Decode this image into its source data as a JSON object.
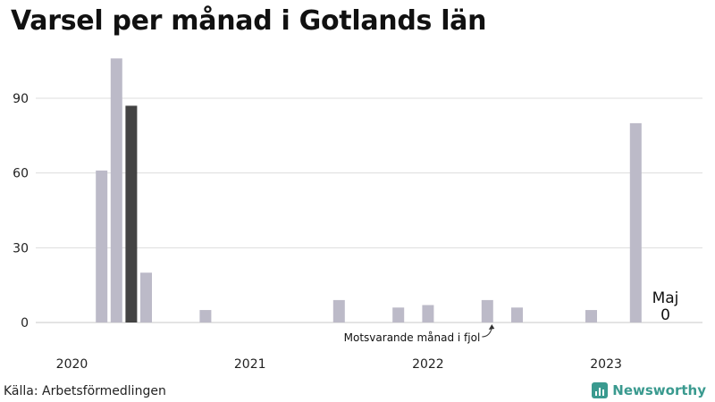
{
  "title": "Varsel per månad i Gotlands län",
  "source": "Källa: Arbetsförmedlingen",
  "brand": "Newsworthy",
  "colors": {
    "bar": "#bcbac8",
    "highlight": "#434343",
    "grid": "#dddddd",
    "brand": "#3a9a8f"
  },
  "chart_data": {
    "type": "bar",
    "title": "Varsel per månad i Gotlands län",
    "xlabel": "",
    "ylabel": "",
    "ylim": [
      0,
      105
    ],
    "yticks": [
      0,
      30,
      60,
      90
    ],
    "grid": true,
    "x_tick_labels": [
      "2020",
      "2021",
      "2022",
      "2023"
    ],
    "categories": [
      "2020-01",
      "2020-02",
      "2020-03",
      "2020-04",
      "2020-05",
      "2020-06",
      "2020-07",
      "2020-08",
      "2020-09",
      "2020-10",
      "2020-11",
      "2020-12",
      "2021-01",
      "2021-02",
      "2021-03",
      "2021-04",
      "2021-05",
      "2021-06",
      "2021-07",
      "2021-08",
      "2021-09",
      "2021-10",
      "2021-11",
      "2021-12",
      "2022-01",
      "2022-02",
      "2022-03",
      "2022-04",
      "2022-05",
      "2022-06",
      "2022-07",
      "2022-08",
      "2022-09",
      "2022-10",
      "2022-11",
      "2022-12",
      "2023-01",
      "2023-02",
      "2023-03",
      "2023-04",
      "2023-05"
    ],
    "values": [
      0,
      0,
      61,
      106,
      87,
      20,
      0,
      0,
      0,
      5,
      0,
      0,
      0,
      0,
      0,
      0,
      0,
      0,
      9,
      0,
      0,
      0,
      6,
      0,
      7,
      0,
      0,
      0,
      9,
      0,
      6,
      0,
      0,
      0,
      0,
      5,
      0,
      0,
      80,
      0,
      0
    ],
    "highlight_index": 4,
    "annotations": {
      "previous_year": {
        "text": "Motsvarande månad i fjol",
        "index": 28
      },
      "latest": {
        "month": "Maj",
        "value": "0",
        "index": 40
      }
    }
  }
}
